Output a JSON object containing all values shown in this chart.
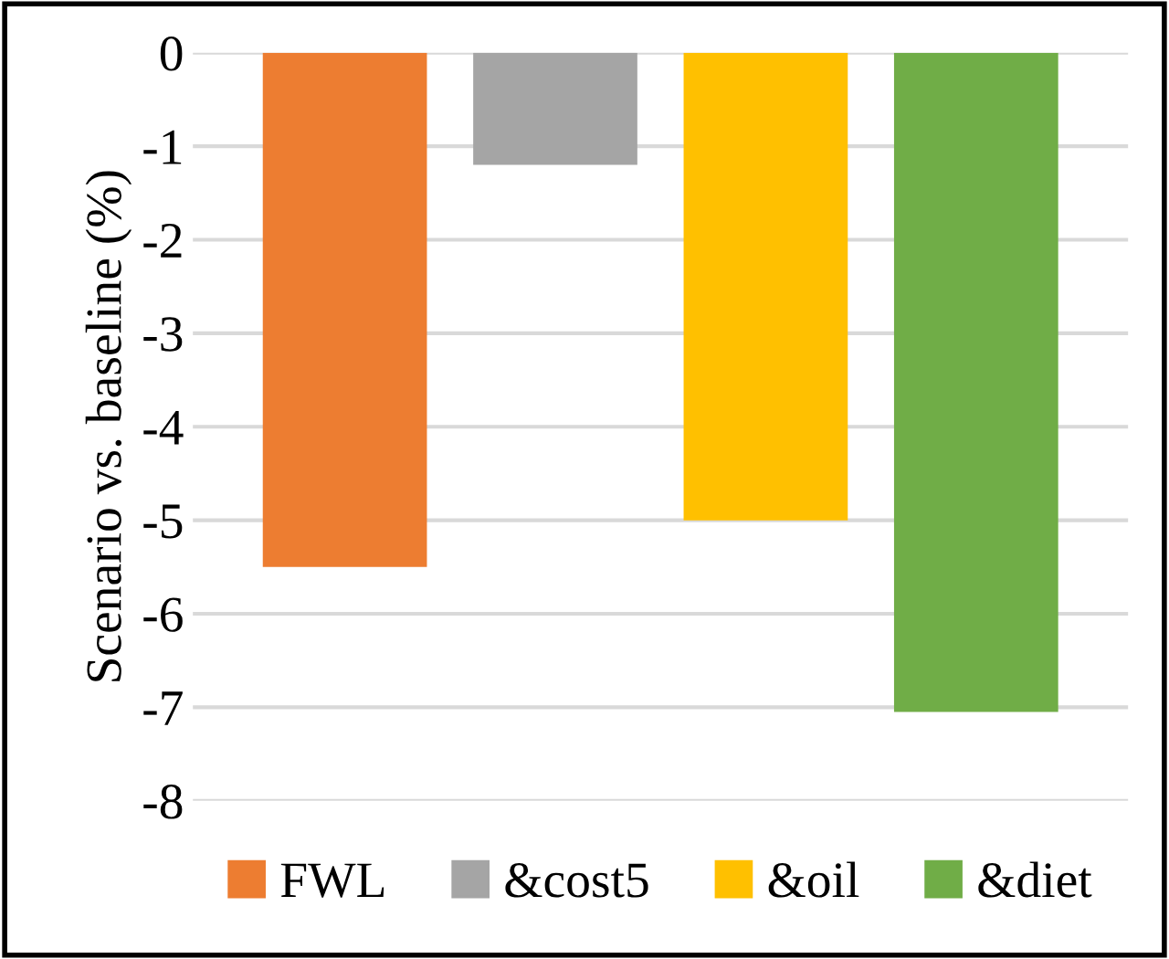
{
  "chart_data": {
    "type": "bar",
    "ylabel": "Scenario vs. baseline (%)",
    "categories": [
      null
    ],
    "series": [
      {
        "name": "FWL",
        "color": "#ed7d31",
        "values": [
          -5.5
        ]
      },
      {
        "name": "&cost5",
        "color": "#a5a5a5",
        "values": [
          -1.2
        ]
      },
      {
        "name": "&oil",
        "color": "#ffc000",
        "values": [
          -5.0
        ]
      },
      {
        "name": "&diet",
        "color": "#70ad47",
        "values": [
          -7.05
        ]
      }
    ],
    "ylim": [
      -8,
      0
    ],
    "yticks": [
      0,
      -1,
      -2,
      -3,
      -4,
      -5,
      -6,
      -7,
      -8
    ],
    "grid": "y",
    "legend": "bottom"
  }
}
